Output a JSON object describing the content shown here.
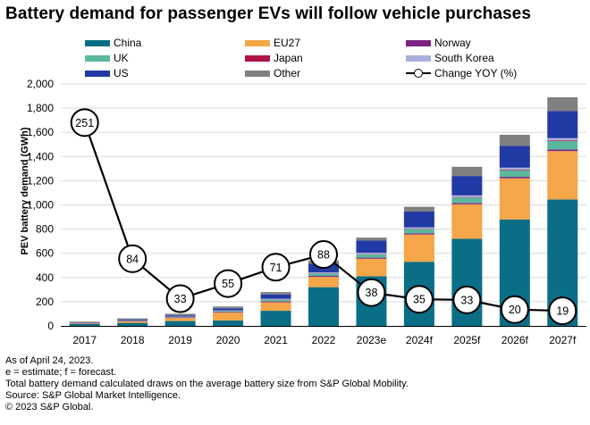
{
  "colors": {
    "china": "#0a6e86",
    "eu27": "#f5a649",
    "norway": "#7c2382",
    "uk": "#5ab99d",
    "japan": "#b0124a",
    "south_korea": "#aab0dd",
    "us": "#223aa5",
    "other": "#808080",
    "line": "#000000"
  },
  "chart_data": {
    "type": "bar",
    "stacked": true,
    "title": "Battery demand for passenger EVs will follow vehicle purchases",
    "ylabel": "PEV battery demand (GWh)",
    "xlabel": "",
    "ylim": [
      0,
      2000
    ],
    "ytick_values": [
      0,
      200,
      400,
      600,
      800,
      1000,
      1200,
      1400,
      1600,
      1800,
      2000
    ],
    "ytick_labels": [
      "0",
      "200",
      "400",
      "600",
      "800",
      "1,000",
      "1,200",
      "1,400",
      "1,600",
      "1,800",
      "2,000"
    ],
    "categories": [
      "2017",
      "2018",
      "2019",
      "2020",
      "2021",
      "2022",
      "2023e",
      "2024f",
      "2025f",
      "2026f",
      "2027f"
    ],
    "series": [
      {
        "name": "China",
        "key": "china",
        "values": [
          15,
          25,
          40,
          45,
          125,
          320,
          410,
          530,
          720,
          880,
          1045
        ]
      },
      {
        "name": "EU27",
        "key": "eu27",
        "values": [
          5,
          12,
          25,
          65,
          70,
          85,
          145,
          225,
          285,
          340,
          400
        ]
      },
      {
        "name": "Norway",
        "key": "norway",
        "values": [
          2,
          3,
          4,
          5,
          7,
          8,
          9,
          10,
          11,
          12,
          13
        ]
      },
      {
        "name": "UK",
        "key": "uk",
        "values": [
          1,
          3,
          4,
          8,
          15,
          20,
          28,
          35,
          45,
          55,
          70
        ]
      },
      {
        "name": "Japan",
        "key": "japan",
        "values": [
          1,
          1,
          1,
          1,
          2,
          2,
          3,
          3,
          4,
          5,
          6
        ]
      },
      {
        "name": "South Korea",
        "key": "south_korea",
        "values": [
          1,
          2,
          3,
          4,
          6,
          8,
          10,
          12,
          14,
          16,
          18
        ]
      },
      {
        "name": "US",
        "key": "us",
        "values": [
          4,
          8,
          10,
          17,
          35,
          70,
          100,
          130,
          160,
          180,
          225
        ]
      },
      {
        "name": "Other",
        "key": "other",
        "values": [
          6,
          8,
          13,
          15,
          20,
          27,
          25,
          40,
          76,
          92,
          113
        ]
      }
    ],
    "line_series": {
      "name": "Change YOY (%)",
      "values": [
        251,
        84,
        33,
        55,
        71,
        88,
        38,
        35,
        33,
        20,
        19
      ],
      "plotted_at_gwh": [
        1680,
        555,
        225,
        350,
        485,
        590,
        275,
        220,
        215,
        135,
        125
      ]
    }
  },
  "legend": [
    {
      "label": "China",
      "key": "china"
    },
    {
      "label": "EU27",
      "key": "eu27"
    },
    {
      "label": "Norway",
      "key": "norway"
    },
    {
      "label": "UK",
      "key": "uk"
    },
    {
      "label": "Japan",
      "key": "japan"
    },
    {
      "label": "South Korea",
      "key": "south_korea"
    },
    {
      "label": "US",
      "key": "us"
    },
    {
      "label": "Other",
      "key": "other"
    },
    {
      "label": "Change YOY (%)",
      "key": "line"
    }
  ],
  "notes": {
    "line1": "As of April 24, 2023.",
    "line2": "e = estimate; f = forecast.",
    "line3": "Total battery demand calculated draws on the average battery size from S&P Global Mobility.",
    "line4": "Source: S&P Global Market Intelligence.",
    "line5": "© 2023 S&P Global."
  }
}
